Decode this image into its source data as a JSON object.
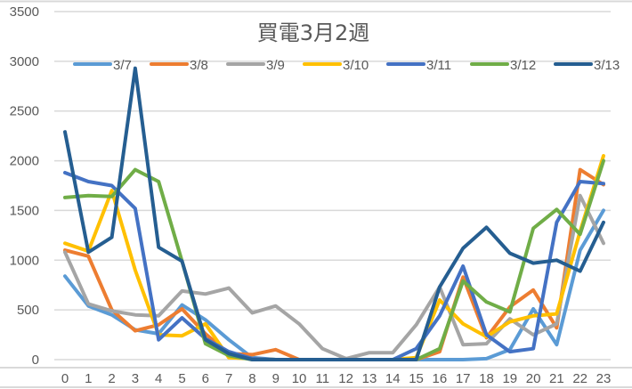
{
  "chart_data": {
    "type": "line",
    "title": "買電3月2週",
    "xlabel": "",
    "ylabel": "",
    "ylim": [
      0,
      3500
    ],
    "yticks": [
      0,
      500,
      1000,
      1500,
      2000,
      2500,
      3000,
      3500
    ],
    "x": [
      0,
      1,
      2,
      3,
      4,
      5,
      6,
      7,
      8,
      9,
      10,
      11,
      12,
      13,
      14,
      15,
      16,
      17,
      18,
      19,
      20,
      21,
      22,
      23
    ],
    "grid": true,
    "legend_position": "top",
    "series": [
      {
        "name": "3/7",
        "color": "#5B9BD5",
        "values": [
          840,
          540,
          450,
          300,
          260,
          550,
          400,
          200,
          20,
          0,
          0,
          0,
          0,
          0,
          0,
          0,
          0,
          0,
          10,
          100,
          510,
          150,
          1100,
          1500
        ]
      },
      {
        "name": "3/8",
        "color": "#ED7D31",
        "values": [
          1100,
          1040,
          500,
          290,
          350,
          510,
          260,
          60,
          50,
          100,
          0,
          0,
          0,
          0,
          0,
          0,
          80,
          830,
          220,
          530,
          700,
          320,
          1910,
          1760
        ]
      },
      {
        "name": "3/9",
        "color": "#A5A5A5",
        "values": [
          1080,
          560,
          490,
          450,
          440,
          690,
          660,
          720,
          470,
          540,
          360,
          110,
          10,
          70,
          70,
          350,
          730,
          150,
          160,
          410,
          250,
          360,
          1650,
          1170
        ]
      },
      {
        "name": "3/10",
        "color": "#FFC000",
        "values": [
          1170,
          1090,
          1700,
          900,
          250,
          240,
          360,
          20,
          10,
          0,
          0,
          0,
          0,
          0,
          0,
          20,
          600,
          360,
          230,
          380,
          440,
          460,
          1290,
          2050
        ]
      },
      {
        "name": "3/11",
        "color": "#4472C4",
        "values": [
          1880,
          1790,
          1750,
          1520,
          200,
          420,
          210,
          80,
          10,
          0,
          0,
          0,
          0,
          0,
          0,
          110,
          440,
          940,
          250,
          80,
          110,
          1380,
          1790,
          1770
        ]
      },
      {
        "name": "3/12",
        "color": "#70AD47",
        "values": [
          1630,
          1650,
          1640,
          1910,
          1790,
          990,
          160,
          40,
          0,
          0,
          0,
          0,
          0,
          0,
          0,
          0,
          110,
          790,
          580,
          480,
          1320,
          1510,
          1260,
          2000
        ]
      },
      {
        "name": "3/13",
        "color": "#255E91",
        "values": [
          2290,
          1080,
          1230,
          2930,
          1130,
          990,
          200,
          60,
          0,
          0,
          0,
          0,
          0,
          0,
          0,
          0,
          730,
          1120,
          1330,
          1070,
          970,
          1000,
          890,
          1380
        ]
      }
    ]
  }
}
